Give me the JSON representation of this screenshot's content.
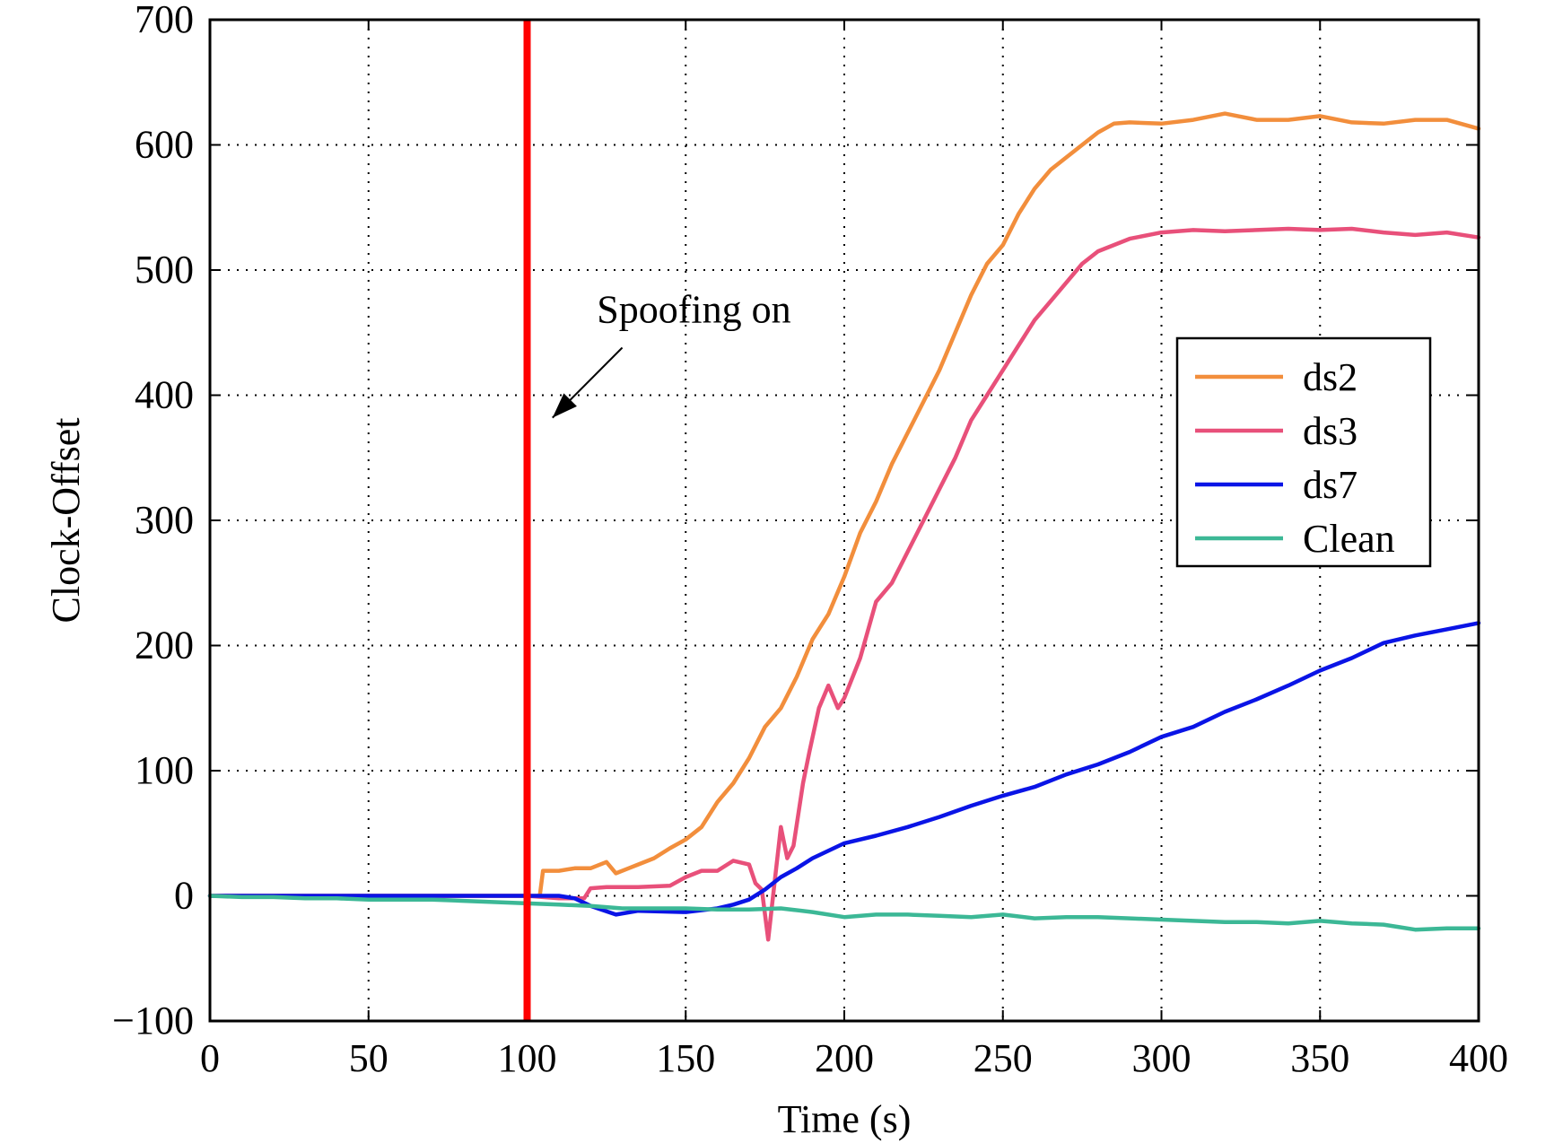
{
  "chart_data": {
    "type": "line",
    "title": "",
    "xlabel": "Time (s)",
    "ylabel": "Clock-Offset",
    "xlim": [
      0,
      400
    ],
    "ylim": [
      -100,
      700
    ],
    "xticks": [
      0,
      50,
      100,
      150,
      200,
      250,
      300,
      350,
      400
    ],
    "yticks": [
      -100,
      0,
      100,
      200,
      300,
      400,
      500,
      600,
      700
    ],
    "xtick_labels": [
      "0",
      "50",
      "100",
      "150",
      "200",
      "250",
      "300",
      "350",
      "400"
    ],
    "ytick_labels": [
      "−100",
      "0",
      "100",
      "200",
      "300",
      "400",
      "500",
      "600",
      "700"
    ],
    "grid": true,
    "legend_position": "right",
    "vline": {
      "x": 100,
      "color": "#ff0000"
    },
    "annotation": {
      "text": "Spoofing on",
      "text_x": 122,
      "text_y": 458,
      "arrow_from": [
        130,
        438
      ],
      "arrow_to": [
        108,
        382
      ]
    },
    "series": [
      {
        "name": "ds2",
        "color": "#f28e3c",
        "x": [
          0,
          20,
          40,
          60,
          80,
          100,
          104,
          105,
          110,
          115,
          120,
          125,
          128,
          132,
          135,
          140,
          145,
          150,
          155,
          160,
          165,
          170,
          175,
          180,
          185,
          190,
          195,
          200,
          205,
          210,
          215,
          220,
          225,
          230,
          235,
          240,
          245,
          250,
          255,
          260,
          265,
          270,
          275,
          280,
          285,
          290,
          300,
          310,
          320,
          330,
          340,
          350,
          360,
          370,
          380,
          390,
          400
        ],
        "y": [
          0,
          0,
          0,
          0,
          0,
          0,
          0,
          20,
          20,
          22,
          22,
          27,
          18,
          22,
          25,
          30,
          38,
          45,
          55,
          75,
          90,
          110,
          135,
          150,
          175,
          205,
          225,
          255,
          290,
          315,
          345,
          370,
          395,
          420,
          450,
          480,
          505,
          520,
          545,
          565,
          580,
          590,
          600,
          610,
          617,
          618,
          617,
          620,
          625,
          620,
          620,
          623,
          618,
          617,
          620,
          620,
          613
        ]
      },
      {
        "name": "ds3",
        "color": "#e8507a",
        "x": [
          0,
          20,
          40,
          60,
          80,
          100,
          110,
          118,
          120,
          125,
          135,
          145,
          150,
          155,
          160,
          165,
          170,
          172,
          174,
          176,
          178,
          180,
          182,
          184,
          187,
          189,
          192,
          195,
          198,
          200,
          205,
          210,
          215,
          220,
          225,
          230,
          235,
          240,
          245,
          250,
          255,
          260,
          265,
          270,
          275,
          280,
          285,
          290,
          300,
          310,
          320,
          330,
          340,
          350,
          360,
          370,
          380,
          390,
          400
        ],
        "y": [
          0,
          0,
          0,
          0,
          0,
          0,
          -2,
          -2,
          6,
          7,
          7,
          8,
          15,
          20,
          20,
          28,
          25,
          10,
          5,
          -35,
          10,
          55,
          30,
          40,
          90,
          115,
          150,
          168,
          150,
          158,
          190,
          235,
          250,
          275,
          300,
          325,
          350,
          380,
          400,
          420,
          440,
          460,
          475,
          490,
          505,
          515,
          520,
          525,
          530,
          532,
          531,
          532,
          533,
          532,
          533,
          530,
          528,
          530,
          526
        ]
      },
      {
        "name": "ds7",
        "color": "#0a14e6",
        "x": [
          0,
          20,
          40,
          60,
          80,
          100,
          110,
          115,
          120,
          128,
          135,
          150,
          160,
          165,
          170,
          175,
          180,
          185,
          190,
          200,
          210,
          220,
          230,
          240,
          250,
          260,
          270,
          280,
          290,
          300,
          310,
          320,
          330,
          340,
          350,
          360,
          370,
          380,
          390,
          400
        ],
        "y": [
          0,
          0,
          0,
          0,
          0,
          0,
          0,
          -2,
          -8,
          -15,
          -12,
          -13,
          -10,
          -7,
          -3,
          5,
          15,
          22,
          30,
          42,
          48,
          55,
          63,
          72,
          80,
          87,
          97,
          105,
          115,
          127,
          135,
          147,
          157,
          168,
          180,
          190,
          202,
          208,
          213,
          218
        ]
      },
      {
        "name": "Clean",
        "color": "#3cb896",
        "x": [
          0,
          10,
          20,
          30,
          40,
          50,
          60,
          70,
          80,
          90,
          100,
          110,
          120,
          130,
          140,
          150,
          160,
          170,
          180,
          190,
          200,
          210,
          220,
          230,
          240,
          250,
          260,
          270,
          280,
          290,
          300,
          310,
          320,
          330,
          340,
          350,
          360,
          370,
          375,
          380,
          390,
          400
        ],
        "y": [
          0,
          -1,
          -1,
          -2,
          -2,
          -3,
          -3,
          -3,
          -4,
          -5,
          -6,
          -7,
          -8,
          -10,
          -10,
          -10,
          -11,
          -11,
          -10,
          -13,
          -17,
          -15,
          -15,
          -16,
          -17,
          -15,
          -18,
          -17,
          -17,
          -18,
          -19,
          -20,
          -21,
          -21,
          -22,
          -20,
          -22,
          -23,
          -25,
          -27,
          -26,
          -26
        ]
      }
    ]
  }
}
